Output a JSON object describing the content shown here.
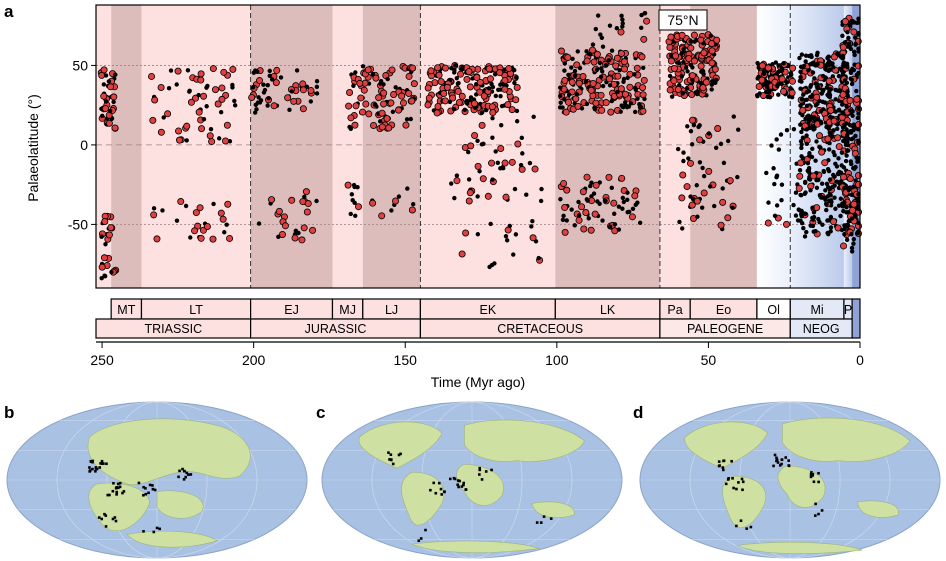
{
  "panels": {
    "a": "a",
    "b": "b",
    "c": "c",
    "d": "d"
  },
  "chart_data": {
    "type": "scatter",
    "title": "",
    "xlabel": "Time (Myr ago)",
    "ylabel": "Palaeolatitude (°)",
    "xlim": [
      252,
      0
    ],
    "ylim": [
      -90,
      88
    ],
    "x_ticks": [
      250,
      200,
      150,
      100,
      50,
      0
    ],
    "y_ticks": [
      50,
      0,
      -50
    ],
    "grid": true,
    "annotation": "75°N",
    "annotation_point": [
      57,
      76
    ],
    "colors": {
      "light_band": "#fde0e0",
      "dark_band": "#ddbcbc",
      "marked_point": "#e04040",
      "unmarked_point": "#000000"
    },
    "periods": [
      {
        "label": "TRIASSIC",
        "start": 252,
        "end": 201
      },
      {
        "label": "JURASSIC",
        "start": 201,
        "end": 145
      },
      {
        "label": "CRETACEOUS",
        "start": 145,
        "end": 66
      },
      {
        "label": "PALEOGENE",
        "start": 66,
        "end": 23
      },
      {
        "label": "NEOG",
        "start": 23,
        "end": 2.6
      }
    ],
    "epochs": [
      {
        "label": "MT",
        "start": 247,
        "end": 237,
        "shade": "dark"
      },
      {
        "label": "LT",
        "start": 237,
        "end": 201,
        "shade": "light"
      },
      {
        "label": "EJ",
        "start": 201,
        "end": 174,
        "shade": "dark"
      },
      {
        "label": "MJ",
        "start": 174,
        "end": 164,
        "shade": "light"
      },
      {
        "label": "LJ",
        "start": 164,
        "end": 145,
        "shade": "dark"
      },
      {
        "label": "EK",
        "start": 145,
        "end": 100.5,
        "shade": "light"
      },
      {
        "label": "LK",
        "start": 100.5,
        "end": 66,
        "shade": "dark"
      },
      {
        "label": "Pa",
        "start": 66,
        "end": 56,
        "shade": "light"
      },
      {
        "label": "Eo",
        "start": 56,
        "end": 34,
        "shade": "dark"
      },
      {
        "label": "Ol",
        "start": 34,
        "end": 23,
        "shade": "white"
      },
      {
        "label": "Mi",
        "start": 23,
        "end": 5.3,
        "shade": "blue"
      },
      {
        "label": "P",
        "start": 5.3,
        "end": 2.6,
        "shade": "blue"
      }
    ],
    "clusters": [
      {
        "x": 248,
        "xs": 2.5,
        "ylo": 10,
        "yhi": 48,
        "n": 45,
        "red": 0.5
      },
      {
        "x": 248,
        "xs": 2.5,
        "ylo": -85,
        "yhi": -40,
        "n": 30,
        "red": 0.5
      },
      {
        "x": 220,
        "xs": 14,
        "ylo": 0,
        "yhi": 50,
        "n": 60,
        "red": 0.55
      },
      {
        "x": 220,
        "xs": 14,
        "ylo": -60,
        "yhi": -35,
        "n": 25,
        "red": 0.55
      },
      {
        "x": 190,
        "xs": 11,
        "ylo": 20,
        "yhi": 48,
        "n": 55,
        "red": 0.5
      },
      {
        "x": 190,
        "xs": 11,
        "ylo": -60,
        "yhi": -28,
        "n": 25,
        "red": 0.5
      },
      {
        "x": 158,
        "xs": 11,
        "ylo": 10,
        "yhi": 50,
        "n": 100,
        "red": 0.6
      },
      {
        "x": 158,
        "xs": 11,
        "ylo": -45,
        "yhi": -25,
        "n": 20,
        "red": 0.5
      },
      {
        "x": 128,
        "xs": 15,
        "ylo": 20,
        "yhi": 50,
        "n": 170,
        "red": 0.6
      },
      {
        "x": 120,
        "xs": 15,
        "ylo": -80,
        "yhi": 18,
        "n": 70,
        "red": 0.35
      },
      {
        "x": 85,
        "xs": 14,
        "ylo": 20,
        "yhi": 60,
        "n": 200,
        "red": 0.55
      },
      {
        "x": 85,
        "xs": 14,
        "ylo": -55,
        "yhi": -20,
        "n": 70,
        "red": 0.4
      },
      {
        "x": 80,
        "xs": 10,
        "ylo": 60,
        "yhi": 86,
        "n": 20,
        "red": 0.1
      },
      {
        "x": 55,
        "xs": 8,
        "ylo": 30,
        "yhi": 70,
        "n": 180,
        "red": 0.65
      },
      {
        "x": 50,
        "xs": 10,
        "ylo": -55,
        "yhi": 20,
        "n": 60,
        "red": 0.35
      },
      {
        "x": 28,
        "xs": 6,
        "ylo": 30,
        "yhi": 52,
        "n": 120,
        "red": 0.35
      },
      {
        "x": 25,
        "xs": 6,
        "ylo": -50,
        "yhi": 10,
        "n": 30,
        "red": 0.2
      },
      {
        "x": 12,
        "xs": 8,
        "ylo": 10,
        "yhi": 58,
        "n": 260,
        "red": 0.2
      },
      {
        "x": 12,
        "xs": 8,
        "ylo": -58,
        "yhi": 10,
        "n": 180,
        "red": 0.2
      },
      {
        "x": 3,
        "xs": 3,
        "ylo": -70,
        "yhi": 80,
        "n": 240,
        "red": 0.25
      }
    ]
  },
  "maps": [
    {
      "id": "b",
      "dots": [
        [
          0.3,
          0.4,
          18
        ],
        [
          0.36,
          0.55,
          14
        ],
        [
          0.46,
          0.55,
          10
        ],
        [
          0.58,
          0.45,
          10
        ],
        [
          0.33,
          0.75,
          8
        ],
        [
          0.48,
          0.82,
          4
        ]
      ]
    },
    {
      "id": "c",
      "dots": [
        [
          0.24,
          0.35,
          8
        ],
        [
          0.45,
          0.52,
          12
        ],
        [
          0.38,
          0.55,
          8
        ],
        [
          0.55,
          0.45,
          6
        ],
        [
          0.73,
          0.75,
          4
        ],
        [
          0.34,
          0.85,
          3
        ]
      ]
    },
    {
      "id": "d",
      "dots": [
        [
          0.28,
          0.4,
          8
        ],
        [
          0.47,
          0.37,
          14
        ],
        [
          0.31,
          0.52,
          10
        ],
        [
          0.57,
          0.48,
          8
        ],
        [
          0.6,
          0.68,
          4
        ],
        [
          0.34,
          0.78,
          4
        ]
      ]
    }
  ]
}
